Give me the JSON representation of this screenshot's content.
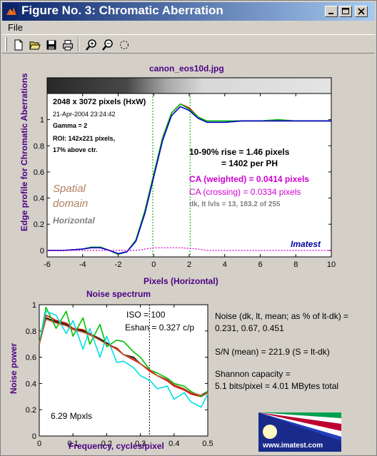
{
  "window": {
    "title": "Figure No. 3: Chromatic Aberration",
    "menu": [
      "File"
    ],
    "controls": [
      "minimize-icon",
      "maximize-icon",
      "close-icon"
    ]
  },
  "toolbar": {
    "tools": [
      "new-file-icon",
      "open-folder-icon",
      "save-icon",
      "print-icon",
      "zoom-in-icon",
      "zoom-out-icon",
      "rotate-icon"
    ]
  },
  "edge_plot": {
    "file_title": "canon_eos10d.jpg",
    "info_size": "2048 x 3072 pixels (HxW)",
    "info_date": "21-Apr-2004 23:24:42",
    "info_gamma": "Gamma = 2",
    "info_roi": "ROI: 142x221 pixels,",
    "info_pos": "17% above ctr.",
    "rise_line1": "10-90% rise = 1.46 pixels",
    "rise_line2": "= 1402 per PH",
    "ca_weighted": "CA (weighted) = 0.0414 pixels",
    "ca_crossing": "CA (crossing) = 0.0334 pixels",
    "levels": "dk, lt lvls = 13, 183.2 of 255",
    "spatial_1": "Spatial",
    "spatial_2": "domain",
    "orientation": "Horizontal",
    "brand": "Imatest",
    "xlabel": "Pixels (Horizontal)",
    "ylabel": "Edge profile for Chromatic Aberrations"
  },
  "noise_plot": {
    "title": "Noise spectrum",
    "iso": "ISO =  100",
    "eshan": "Eshan = 0.327 c/p",
    "mpxls": "6.29 Mpxls",
    "xlabel": "Frequency, cycles/pixel",
    "ylabel": "Noise power"
  },
  "stats": {
    "noise_line1": "Noise (dk, lt, mean; as % of lt-dk) =",
    "noise_line2": "0.231,  0.67,  0.451",
    "sn": "S/N (mean) = 221.9   (S = lt-dk)",
    "shannon_line1": "Shannon capacity =",
    "shannon_line2": "5.1 bits/pixel = 4.01 MBytes total"
  },
  "logo": {
    "url": "www.imatest.com"
  },
  "colors": {
    "red": "#e00000",
    "green": "#00c000",
    "blue": "#0000d0",
    "magenta": "#d000d0",
    "cyan": "#00e0e0",
    "title_text": "#4b0082",
    "spatial": "#b08060"
  },
  "chart_data": [
    {
      "type": "line",
      "title": "canon_eos10d.jpg",
      "xlabel": "Pixels (Horizontal)",
      "ylabel": "Edge profile for Chromatic Aberrations",
      "xlim": [
        -6,
        10
      ],
      "ylim": [
        -0.05,
        1.2
      ],
      "xticks": [
        -6,
        -4,
        -2,
        0,
        2,
        4,
        6,
        8,
        10
      ],
      "yticks": [
        0,
        0.2,
        0.4,
        0.6,
        0.8,
        1
      ],
      "x": [
        -6,
        -5,
        -4,
        -3.5,
        -3,
        -2.5,
        -2,
        -1.5,
        -1,
        -0.5,
        0,
        0.5,
        1,
        1.5,
        2,
        2.5,
        3,
        4,
        5,
        6,
        7,
        8,
        9,
        10
      ],
      "series": [
        {
          "color": "red",
          "values": [
            0.0,
            0.0,
            0.01,
            0.025,
            0.025,
            0.0,
            -0.03,
            -0.01,
            0.08,
            0.3,
            0.58,
            0.86,
            1.05,
            1.12,
            1.09,
            1.02,
            0.98,
            0.98,
            0.99,
            0.99,
            0.99,
            0.99,
            0.99,
            0.99
          ]
        },
        {
          "color": "green",
          "values": [
            0.0,
            0.0,
            0.01,
            0.025,
            0.025,
            0.0,
            -0.03,
            -0.01,
            0.08,
            0.3,
            0.58,
            0.86,
            1.05,
            1.12,
            1.08,
            1.02,
            0.99,
            0.99,
            0.99,
            0.99,
            1.0,
            0.99,
            0.99,
            0.99
          ]
        },
        {
          "color": "blue",
          "values": [
            0.0,
            0.0,
            0.01,
            0.02,
            0.02,
            0.0,
            -0.025,
            -0.01,
            0.07,
            0.28,
            0.56,
            0.84,
            1.03,
            1.1,
            1.07,
            1.01,
            0.98,
            0.98,
            0.99,
            0.99,
            0.99,
            0.99,
            0.99,
            0.99
          ]
        },
        {
          "color": "magenta",
          "style": "dotted",
          "values": [
            0.0,
            0.0,
            0.0,
            0.0,
            0.0,
            0.0,
            0.0,
            0.0,
            0.0,
            0.01,
            0.02,
            0.02,
            0.02,
            0.02,
            0.015,
            0.01,
            0.0,
            0.0,
            0.0,
            0.0,
            0.0,
            0.0,
            0.0,
            0.0
          ]
        }
      ],
      "vlines": [
        -0.05,
        2.05
      ]
    },
    {
      "type": "line",
      "title": "Noise spectrum",
      "xlabel": "Frequency, cycles/pixel",
      "ylabel": "Noise power",
      "xlim": [
        0,
        0.5
      ],
      "ylim": [
        0,
        1
      ],
      "xticks": [
        0,
        0.1,
        0.2,
        0.3,
        0.4,
        0.5
      ],
      "yticks": [
        0,
        0.2,
        0.4,
        0.6,
        0.8,
        1
      ],
      "x": [
        0,
        0.02,
        0.05,
        0.08,
        0.1,
        0.13,
        0.15,
        0.18,
        0.2,
        0.23,
        0.25,
        0.28,
        0.3,
        0.33,
        0.35,
        0.38,
        0.4,
        0.43,
        0.45,
        0.48,
        0.5
      ],
      "series": [
        {
          "color": "black",
          "values": [
            0.7,
            0.9,
            0.87,
            0.85,
            0.82,
            0.8,
            0.78,
            0.74,
            0.71,
            0.66,
            0.62,
            0.6,
            0.55,
            0.5,
            0.46,
            0.43,
            0.39,
            0.36,
            0.32,
            0.31,
            0.34
          ]
        },
        {
          "color": "red",
          "values": [
            0.7,
            0.92,
            0.88,
            0.86,
            0.82,
            0.81,
            0.78,
            0.73,
            0.7,
            0.67,
            0.62,
            0.58,
            0.55,
            0.49,
            0.46,
            0.42,
            0.38,
            0.35,
            0.32,
            0.3,
            0.33
          ]
        },
        {
          "color": "green",
          "values": [
            0.7,
            0.98,
            0.82,
            0.95,
            0.76,
            0.9,
            0.7,
            0.85,
            0.68,
            0.73,
            0.72,
            0.64,
            0.6,
            0.5,
            0.48,
            0.44,
            0.4,
            0.38,
            0.34,
            0.3,
            0.34
          ]
        },
        {
          "color": "cyan",
          "values": [
            0.7,
            0.95,
            0.92,
            0.78,
            0.88,
            0.66,
            0.82,
            0.6,
            0.76,
            0.56,
            0.57,
            0.52,
            0.46,
            0.42,
            0.36,
            0.38,
            0.28,
            0.33,
            0.26,
            0.22,
            0.32
          ]
        },
        {
          "color": "brown",
          "values": [
            0.7,
            0.89,
            0.86,
            0.84,
            0.81,
            0.79,
            0.77,
            0.73,
            0.7,
            0.66,
            0.62,
            0.59,
            0.55,
            0.5,
            0.46,
            0.43,
            0.39,
            0.36,
            0.33,
            0.31,
            0.33
          ]
        }
      ],
      "vline": 0.327
    }
  ]
}
